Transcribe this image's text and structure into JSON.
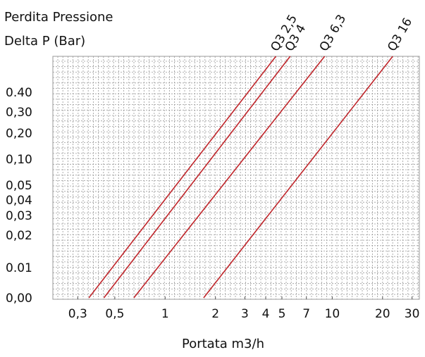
{
  "chart_data": {
    "type": "line",
    "title": [
      "Perdita Pressione",
      "Delta P (Bar)"
    ],
    "xlabel": "Portata m3/h",
    "ylabel": "",
    "x_ticks": [
      {
        "label": "0,3",
        "value": 0.3
      },
      {
        "label": "0,5",
        "value": 0.5
      },
      {
        "label": "1",
        "value": 1
      },
      {
        "label": "2",
        "value": 2
      },
      {
        "label": "3",
        "value": 3
      },
      {
        "label": "4",
        "value": 4
      },
      {
        "label": "5",
        "value": 5
      },
      {
        "label": "7",
        "value": 7
      },
      {
        "label": "10",
        "value": 10
      },
      {
        "label": "20",
        "value": 20
      },
      {
        "label": "30",
        "value": 30
      }
    ],
    "y_ticks": [
      "0,00",
      "0.01",
      "0,02",
      "0,03",
      "0,04",
      "0,05",
      "0,10",
      "0,20",
      "0,30",
      "0.40"
    ],
    "series": [
      {
        "name": "Q3 2,5",
        "color": "#c0262b",
        "points": [
          [
            0.35,
            0.0
          ],
          [
            4.6,
            0.49
          ]
        ]
      },
      {
        "name": "Q3 4",
        "color": "#c0262b",
        "points": [
          [
            0.43,
            0.0
          ],
          [
            5.6,
            0.49
          ]
        ]
      },
      {
        "name": "Q3 6,3",
        "color": "#c0262b",
        "points": [
          [
            0.65,
            0.0
          ],
          [
            9.0,
            0.49
          ]
        ]
      },
      {
        "name": "Q3 16",
        "color": "#c0262b",
        "points": [
          [
            1.7,
            0.0
          ],
          [
            23.0,
            0.49
          ]
        ]
      }
    ],
    "grid": true,
    "legend": "top, labels rotated above line ends"
  }
}
